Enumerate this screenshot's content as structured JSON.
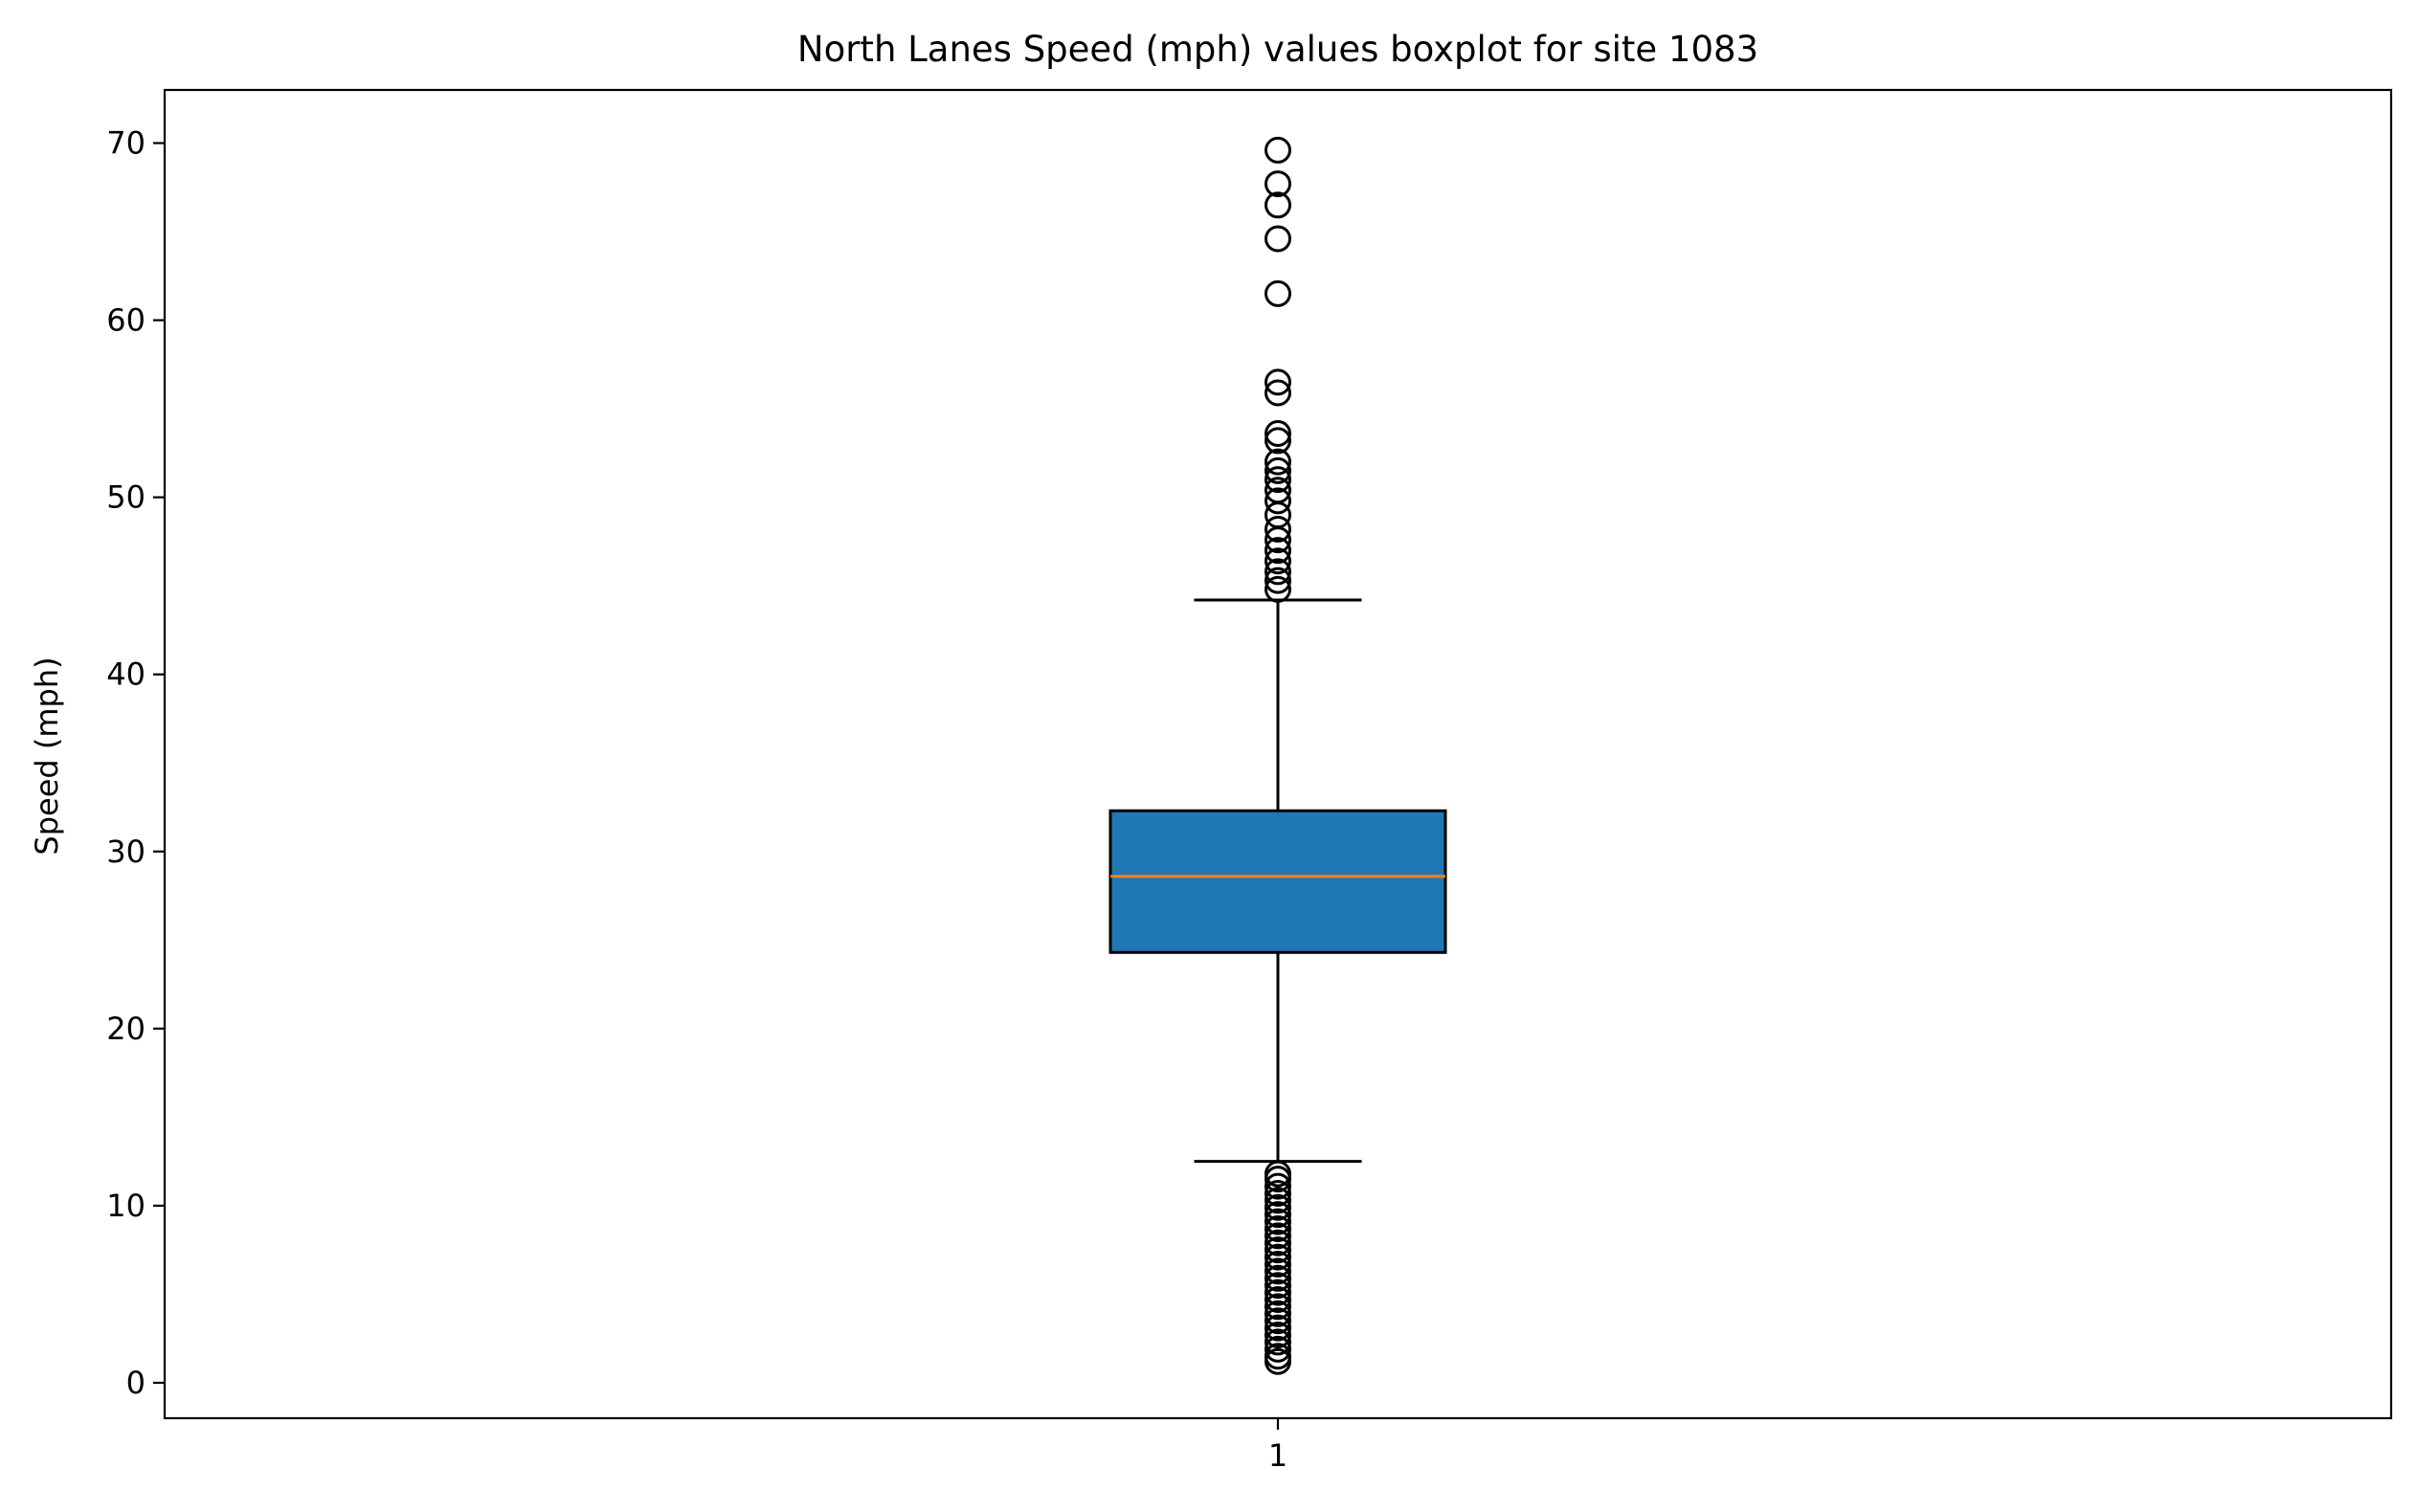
{
  "chart_data": {
    "type": "boxplot",
    "title": "North Lanes Speed (mph) values boxplot for site 1083",
    "xlabel": "",
    "ylabel": "Speed (mph)",
    "ylim": [
      -2.0,
      73.0
    ],
    "yticks": [
      0,
      10,
      20,
      30,
      40,
      50,
      60,
      70
    ],
    "xticks": [
      "1"
    ],
    "grid": false,
    "colors": {
      "box_fill": "#1f77b4",
      "median": "#ff7f0e",
      "lines": "#000000"
    },
    "boxes": [
      {
        "position": "1",
        "whisker_low": 12.5,
        "q1": 24.3,
        "median": 28.6,
        "q3": 32.3,
        "whisker_high": 44.2,
        "outliers": [
          1.2,
          1.5,
          1.9,
          2.3,
          2.7,
          3.1,
          3.5,
          3.9,
          4.3,
          4.7,
          5.1,
          5.5,
          5.9,
          6.3,
          6.7,
          7.1,
          7.5,
          7.9,
          8.3,
          8.7,
          9.1,
          9.5,
          9.9,
          10.3,
          10.7,
          11.1,
          11.5,
          11.8,
          44.8,
          45.3,
          45.8,
          46.4,
          47.0,
          47.6,
          48.2,
          49.0,
          49.8,
          50.4,
          51.0,
          51.5,
          52.0,
          53.2,
          53.6,
          55.9,
          56.5,
          61.5,
          64.6,
          66.5,
          67.7,
          69.6
        ]
      }
    ]
  }
}
